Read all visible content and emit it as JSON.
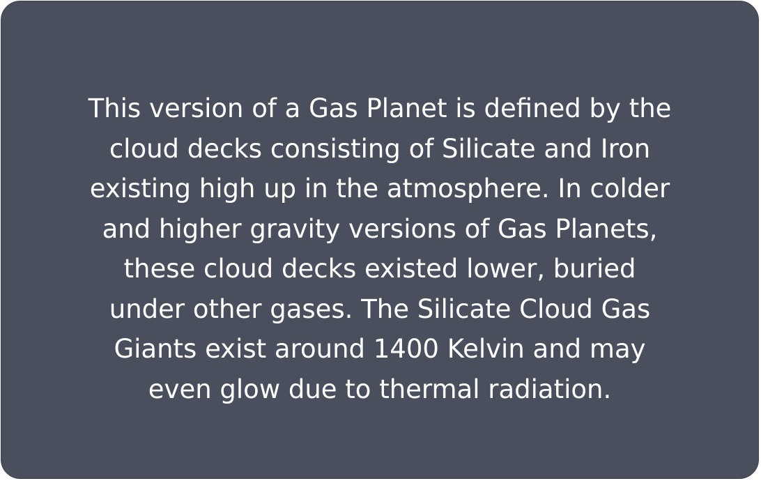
{
  "card": {
    "background": "#4a4f5e",
    "text_color": "#ffffff",
    "lines": [
      "This version of a Gas Planet is defined by the",
      "cloud decks consisting of Silicate and Iron",
      "existing high up in the atmosphere. In colder",
      "and higher gravity versions of Gas Planets,",
      "these cloud decks existed lower, buried",
      "under other gases. The Silicate Cloud Gas",
      "Giants exist around 1400 Kelvin and may",
      "even glow due to thermal radiation."
    ]
  }
}
